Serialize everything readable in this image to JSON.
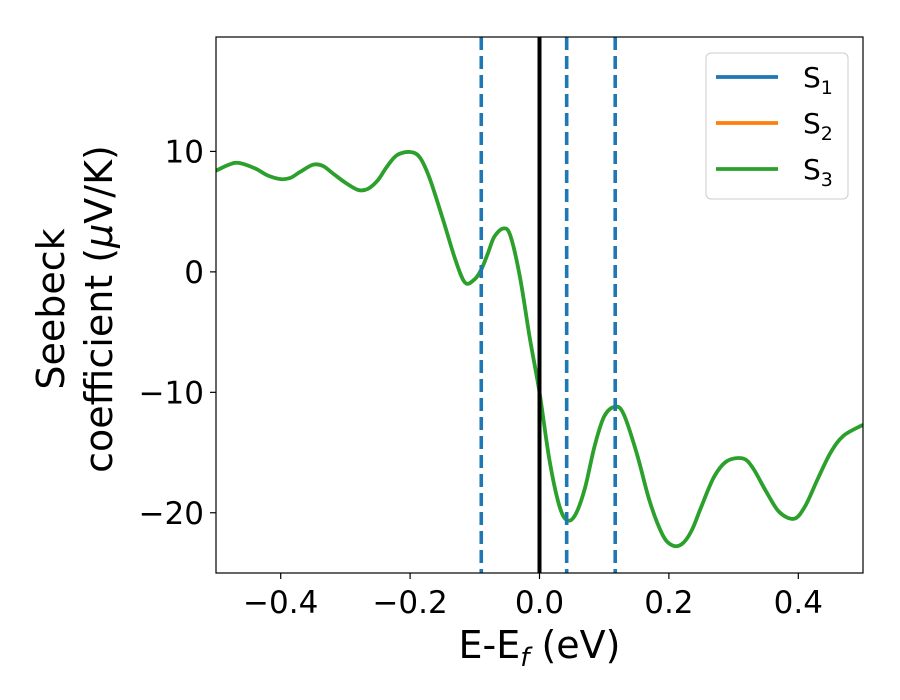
{
  "chart_data": {
    "type": "line",
    "xlabel": "E-E",
    "xlabel_sub": "f",
    "xlabel_unit": " (eV)",
    "ylabel_line1": "Seebeck",
    "ylabel_line2_text": "coefficient  (",
    "ylabel_mu": "μ",
    "ylabel_line2_unit": "V/K)",
    "xlim": [
      -0.5,
      0.5
    ],
    "ylim": [
      -25,
      19.5
    ],
    "x_ticks": [
      -0.4,
      -0.2,
      0.0,
      0.2,
      0.4
    ],
    "x_tick_labels": [
      "−0.4",
      "−0.2",
      "0.0",
      "0.2",
      "0.4"
    ],
    "y_ticks": [
      -20,
      -10,
      0,
      10
    ],
    "y_tick_labels": [
      "−20",
      "−10",
      "0",
      "10"
    ],
    "grid": false,
    "legend_position": "top-right",
    "vertical_lines": [
      {
        "x": 0.0,
        "style": "solid",
        "color": "#000000"
      },
      {
        "x": -0.09,
        "style": "dashed",
        "color": "#1f77b4"
      },
      {
        "x": 0.042,
        "style": "dashed",
        "color": "#1f77b4"
      },
      {
        "x": 0.117,
        "style": "dashed",
        "color": "#1f77b4"
      }
    ],
    "series": [
      {
        "name": "S",
        "sub": "1",
        "color": "#1f77b4",
        "drawn": false
      },
      {
        "name": "S",
        "sub": "2",
        "color": "#ff7f0e",
        "drawn": false
      },
      {
        "name": "S",
        "sub": "3",
        "color": "#2ca02c",
        "drawn": true
      }
    ],
    "x": [
      -0.5,
      -0.48,
      -0.465,
      -0.44,
      -0.42,
      -0.4,
      -0.385,
      -0.37,
      -0.35,
      -0.335,
      -0.32,
      -0.3,
      -0.28,
      -0.265,
      -0.25,
      -0.235,
      -0.22,
      -0.2,
      -0.185,
      -0.17,
      -0.15,
      -0.13,
      -0.115,
      -0.1,
      -0.09,
      -0.08,
      -0.07,
      -0.056,
      -0.045,
      -0.03,
      -0.015,
      0.0,
      0.015,
      0.03,
      0.042,
      0.055,
      0.07,
      0.085,
      0.1,
      0.117,
      0.13,
      0.15,
      0.17,
      0.19,
      0.205,
      0.22,
      0.235,
      0.25,
      0.27,
      0.29,
      0.315,
      0.33,
      0.35,
      0.37,
      0.393,
      0.41,
      0.43,
      0.45,
      0.47,
      0.5
    ],
    "y": [
      8.4,
      8.9,
      9.05,
      8.6,
      8.0,
      7.7,
      7.8,
      8.3,
      8.9,
      8.8,
      8.2,
      7.4,
      6.8,
      6.9,
      7.6,
      8.8,
      9.7,
      9.95,
      9.5,
      7.8,
      4.5,
      1.0,
      -0.9,
      -0.6,
      0.2,
      1.5,
      2.9,
      3.6,
      3.0,
      -0.5,
      -5.5,
      -10.0,
      -15.5,
      -19.3,
      -20.6,
      -20.2,
      -18.0,
      -14.5,
      -12.0,
      -11.2,
      -11.8,
      -15.0,
      -19.0,
      -21.8,
      -22.7,
      -22.6,
      -21.5,
      -19.5,
      -17.0,
      -15.7,
      -15.5,
      -16.3,
      -18.2,
      -19.9,
      -20.5,
      -19.5,
      -17.2,
      -15.0,
      -13.6,
      -12.7
    ]
  }
}
